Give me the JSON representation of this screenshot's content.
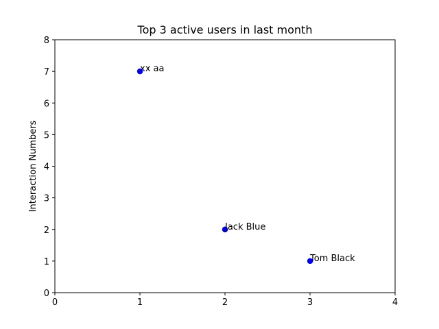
{
  "chart_data": {
    "type": "scatter",
    "title": "Top 3 active users in last month",
    "xlabel": "",
    "ylabel": "Interaction Numbers",
    "xlim": [
      0,
      4
    ],
    "ylim": [
      0,
      8
    ],
    "x_ticks": [
      0,
      1,
      2,
      3,
      4
    ],
    "y_ticks": [
      0,
      1,
      2,
      3,
      4,
      5,
      6,
      7,
      8
    ],
    "grid": false,
    "marker_color": "#0000ff",
    "points": [
      {
        "x": 1,
        "y": 7,
        "label": "xx aa"
      },
      {
        "x": 2,
        "y": 2,
        "label": "Jack Blue"
      },
      {
        "x": 3,
        "y": 1,
        "label": "Tom Black"
      }
    ]
  }
}
